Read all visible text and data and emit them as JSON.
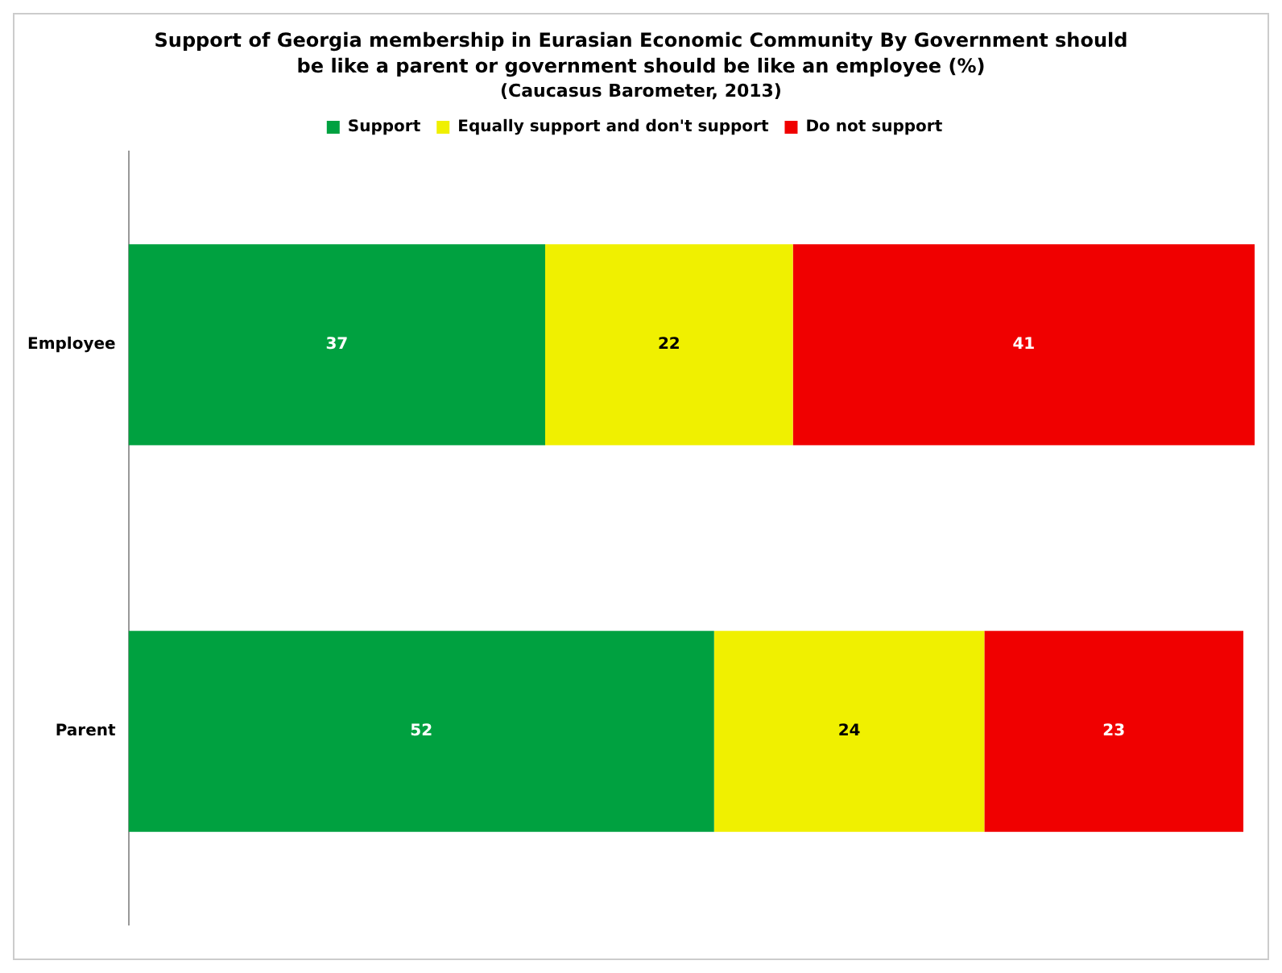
{
  "chart_data": {
    "type": "bar",
    "orientation": "horizontal",
    "stacked": true,
    "title": "Support of Georgia membership in Eurasian Economic Community By Government should be like a parent or government should be like an employee (%)",
    "subtitle": "(Caucasus Barometer, 2013)",
    "categories": [
      "Employee",
      "Parent"
    ],
    "series": [
      {
        "name": "Support",
        "color": "#00a140",
        "values": [
          37,
          52
        ]
      },
      {
        "name": "Equally support and don't support",
        "color": "#f0f000",
        "values": [
          22,
          24
        ]
      },
      {
        "name": "Do not support",
        "color": "#f00000",
        "values": [
          41,
          23
        ]
      }
    ],
    "data_labels": true,
    "legend": "top"
  }
}
